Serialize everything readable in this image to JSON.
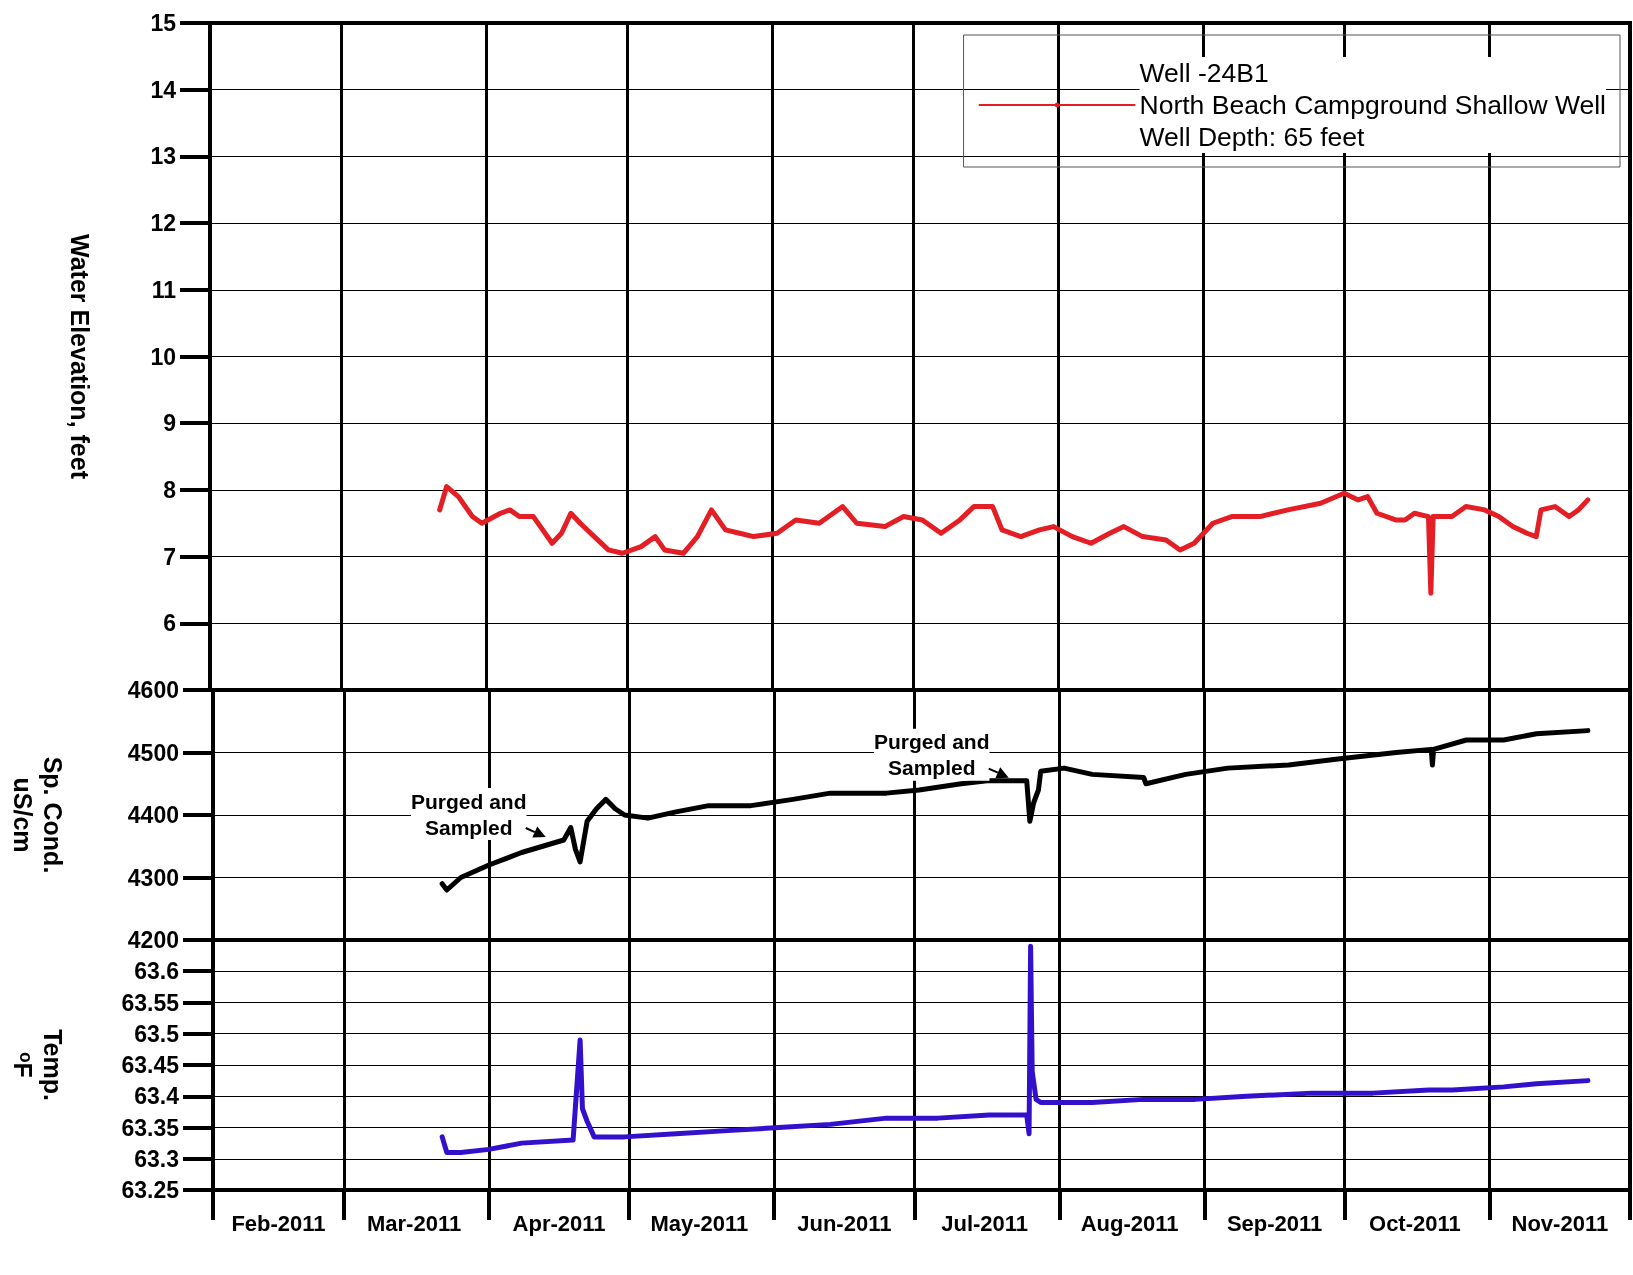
{
  "chart_data": [
    {
      "type": "line",
      "ylabel": "Water Elevation, feet",
      "legend": "top right",
      "grid": true,
      "tick_labels": "y",
      "marker": "none",
      "line_style": "solid",
      "xlim": [
        "2011-02-01",
        "2011-12-01"
      ],
      "xticks": [
        {
          "value": "2011-02-01",
          "label": null
        },
        {
          "value": "2011-03-01",
          "label": null
        },
        {
          "value": "2011-04-01",
          "label": null
        },
        {
          "value": "2011-05-01",
          "label": null
        },
        {
          "value": "2011-06-01",
          "label": null
        },
        {
          "value": "2011-07-01",
          "label": null
        },
        {
          "value": "2011-08-01",
          "label": null
        },
        {
          "value": "2011-09-01",
          "label": null
        },
        {
          "value": "2011-10-01",
          "label": null
        },
        {
          "value": "2011-11-01",
          "label": null
        },
        {
          "value": "2011-12-01",
          "label": null
        }
      ],
      "ylim": [
        5,
        15
      ],
      "yticks": [
        6,
        7,
        8,
        9,
        10,
        11,
        12,
        13,
        14,
        15
      ],
      "series": [
        {
          "name": "Well -24B1\nNorth Beach Campground Shallow Well\nWell Depth: 65 feet",
          "color": "#e31e24",
          "x": [
            "2011-03-22",
            "2011-03-23T12:00",
            "2011-03-26",
            "2011-03-29",
            "2011-03-31",
            "2011-04-04",
            "2011-04-06",
            "2011-04-08",
            "2011-04-11",
            "2011-04-13",
            "2011-04-15",
            "2011-04-17",
            "2011-04-19",
            "2011-04-21",
            "2011-04-24",
            "2011-04-27",
            "2011-04-30",
            "2011-05-04",
            "2011-05-07",
            "2011-05-09",
            "2011-05-13",
            "2011-05-16",
            "2011-05-19",
            "2011-05-22",
            "2011-05-25",
            "2011-05-28",
            "2011-06-02",
            "2011-06-06",
            "2011-06-11",
            "2011-06-16",
            "2011-06-19",
            "2011-06-25",
            "2011-06-29",
            "2011-07-03",
            "2011-07-07",
            "2011-07-11",
            "2011-07-14",
            "2011-07-18",
            "2011-07-20",
            "2011-07-24",
            "2011-07-28",
            "2011-07-31",
            "2011-08-04",
            "2011-08-08",
            "2011-08-12",
            "2011-08-15",
            "2011-08-19",
            "2011-08-24",
            "2011-08-27",
            "2011-08-30",
            "2011-09-03",
            "2011-09-07",
            "2011-09-13",
            "2011-09-19",
            "2011-09-26",
            "2011-10-01",
            "2011-10-04",
            "2011-10-06",
            "2011-10-08",
            "2011-10-12",
            "2011-10-14",
            "2011-10-16",
            "2011-10-19",
            "2011-10-19T12:00",
            "2011-10-20",
            "2011-10-24",
            "2011-10-27",
            "2011-10-31",
            "2011-11-03",
            "2011-11-06",
            "2011-11-09",
            "2011-11-11",
            "2011-11-12",
            "2011-11-15",
            "2011-11-18",
            "2011-11-20",
            "2011-11-22"
          ],
          "values": [
            7.7,
            8.05,
            7.9,
            7.6,
            7.5,
            7.65,
            7.7,
            7.6,
            7.6,
            7.4,
            7.2,
            7.35,
            7.65,
            7.5,
            7.3,
            7.1,
            7.05,
            7.15,
            7.3,
            7.1,
            7.05,
            7.3,
            7.7,
            7.4,
            7.35,
            7.3,
            7.35,
            7.55,
            7.5,
            7.75,
            7.5,
            7.45,
            7.6,
            7.55,
            7.35,
            7.55,
            7.75,
            7.75,
            7.4,
            7.3,
            7.4,
            7.45,
            7.3,
            7.2,
            7.35,
            7.45,
            7.3,
            7.25,
            7.1,
            7.2,
            7.5,
            7.6,
            7.6,
            7.7,
            7.8,
            7.95,
            7.85,
            7.9,
            7.65,
            7.55,
            7.55,
            7.65,
            7.6,
            6.45,
            7.6,
            7.6,
            7.75,
            7.7,
            7.6,
            7.45,
            7.35,
            7.3,
            7.7,
            7.75,
            7.6,
            7.7,
            7.85
          ]
        }
      ]
    },
    {
      "type": "line",
      "ylabel": "Sp. Cond.\nuS/cm",
      "grid": true,
      "tick_labels": "y",
      "marker": "none",
      "line_style": "solid",
      "xlim": [
        "2011-02-01",
        "2011-12-01"
      ],
      "xticks": [
        {
          "value": "2011-02-01",
          "label": null
        },
        {
          "value": "2011-03-01",
          "label": null
        },
        {
          "value": "2011-04-01",
          "label": null
        },
        {
          "value": "2011-05-01",
          "label": null
        },
        {
          "value": "2011-06-01",
          "label": null
        },
        {
          "value": "2011-07-01",
          "label": null
        },
        {
          "value": "2011-08-01",
          "label": null
        },
        {
          "value": "2011-09-01",
          "label": null
        },
        {
          "value": "2011-10-01",
          "label": null
        },
        {
          "value": "2011-11-01",
          "label": null
        },
        {
          "value": "2011-12-01",
          "label": null
        }
      ],
      "ylim": [
        4200,
        4600
      ],
      "yticks": [
        4200,
        4300,
        4400,
        4500,
        4600
      ],
      "annotations": [
        {
          "text": "Purged and\nSampled",
          "x": "2011-04-17",
          "y": 4360
        },
        {
          "text": "Purged and\nSampled",
          "x": "2011-07-25",
          "y": 4455
        }
      ],
      "series": [
        {
          "color": "#000000",
          "x": [
            "2011-03-22",
            "2011-03-23",
            "2011-03-26",
            "2011-04-01",
            "2011-04-08",
            "2011-04-17",
            "2011-04-18T12:00",
            "2011-04-19T12:00",
            "2011-04-20T12:00",
            "2011-04-22",
            "2011-04-24",
            "2011-04-26",
            "2011-04-28",
            "2011-04-30",
            "2011-05-05",
            "2011-05-11",
            "2011-05-18",
            "2011-05-27",
            "2011-06-05",
            "2011-06-13",
            "2011-06-25",
            "2011-07-02",
            "2011-07-11",
            "2011-07-17",
            "2011-07-25",
            "2011-07-25T16:00",
            "2011-07-26T12:00",
            "2011-07-27T12:00",
            "2011-07-28",
            "2011-08-02",
            "2011-08-08",
            "2011-08-19",
            "2011-08-19T12:00",
            "2011-08-28",
            "2011-09-06",
            "2011-09-19",
            "2011-09-30",
            "2011-10-12",
            "2011-10-19T12:00",
            "2011-10-19T18:00",
            "2011-10-20",
            "2011-10-27",
            "2011-11-04",
            "2011-11-11",
            "2011-11-22"
          ],
          "values": [
            4290,
            4280,
            4300,
            4320,
            4340,
            4360,
            4380,
            4345,
            4325,
            4390,
            4410,
            4425,
            4410,
            4400,
            4395,
            4405,
            4415,
            4415,
            4425,
            4435,
            4435,
            4440,
            4450,
            4455,
            4455,
            4390,
            4420,
            4440,
            4470,
            4475,
            4465,
            4460,
            4450,
            4465,
            4475,
            4480,
            4490,
            4500,
            4505,
            4480,
            4505,
            4520,
            4520,
            4530,
            4535
          ]
        }
      ]
    },
    {
      "type": "line",
      "ylabel": "Temp.\nᵒF",
      "grid": true,
      "marker": "none",
      "line_style": "solid",
      "xlim": [
        "2011-02-01",
        "2011-12-01"
      ],
      "xticks": [
        {
          "value": "2011-02-01",
          "label": null
        },
        {
          "value": "2011-03-01",
          "label": null
        },
        {
          "value": "2011-04-01",
          "label": null
        },
        {
          "value": "2011-05-01",
          "label": null
        },
        {
          "value": "2011-06-01",
          "label": null
        },
        {
          "value": "2011-07-01",
          "label": null
        },
        {
          "value": "2011-08-01",
          "label": null
        },
        {
          "value": "2011-09-01",
          "label": null
        },
        {
          "value": "2011-10-01",
          "label": null
        },
        {
          "value": "2011-11-01",
          "label": null
        },
        {
          "value": "2011-12-01",
          "label": null
        },
        {
          "value": "2011-02-15",
          "label": "Feb-2011"
        },
        {
          "value": "2011-03-16",
          "label": "Mar-2011"
        },
        {
          "value": "2011-04-16",
          "label": "Apr-2011"
        },
        {
          "value": "2011-05-16",
          "label": "May-2011"
        },
        {
          "value": "2011-06-16",
          "label": "Jun-2011"
        },
        {
          "value": "2011-07-16",
          "label": "Jul-2011"
        },
        {
          "value": "2011-08-16",
          "label": "Aug-2011"
        },
        {
          "value": "2011-09-16",
          "label": "Sep-2011"
        },
        {
          "value": "2011-10-16",
          "label": "Oct-2011"
        },
        {
          "value": "2011-11-16",
          "label": "Nov-2011"
        }
      ],
      "ylim": [
        63.25,
        63.65
      ],
      "yticks": [
        63.25,
        63.3,
        63.35,
        63.4,
        63.45,
        63.5,
        63.55,
        63.6
      ],
      "series": [
        {
          "color": "#3311cc",
          "x": [
            "2011-03-22",
            "2011-03-23",
            "2011-03-26",
            "2011-04-01",
            "2011-04-08",
            "2011-04-19",
            "2011-04-20T12:00",
            "2011-04-21",
            "2011-04-22",
            "2011-04-23T12:00",
            "2011-04-30",
            "2011-05-11",
            "2011-05-22",
            "2011-06-02",
            "2011-06-13",
            "2011-06-25",
            "2011-07-06",
            "2011-07-17",
            "2011-07-25",
            "2011-07-25T12:00",
            "2011-07-25T20:00",
            "2011-07-26T04:00",
            "2011-07-27",
            "2011-07-28",
            "2011-08-08",
            "2011-08-19",
            "2011-08-30",
            "2011-09-10",
            "2011-09-24",
            "2011-10-07",
            "2011-10-19",
            "2011-10-24",
            "2011-11-04",
            "2011-11-11",
            "2011-11-22"
          ],
          "values": [
            63.335,
            63.31,
            63.31,
            63.315,
            63.325,
            63.33,
            63.49,
            63.38,
            63.36,
            63.335,
            63.335,
            63.34,
            63.345,
            63.35,
            63.355,
            63.365,
            63.365,
            63.37,
            63.37,
            63.34,
            63.64,
            63.44,
            63.395,
            63.39,
            63.39,
            63.395,
            63.395,
            63.4,
            63.405,
            63.405,
            63.41,
            63.41,
            63.415,
            63.42,
            63.425
          ]
        }
      ]
    }
  ]
}
